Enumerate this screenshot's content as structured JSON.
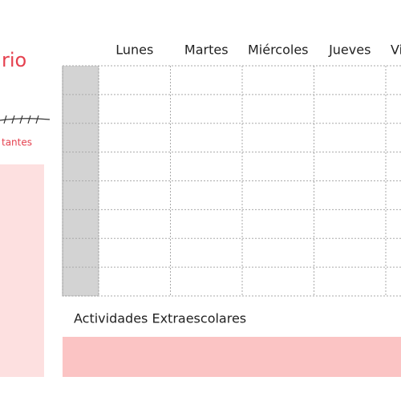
{
  "header": {
    "title": "rio"
  },
  "notes": {
    "title": "tantes"
  },
  "schedule": {
    "days": [
      "Lunes",
      "Martes",
      "Miércoles",
      "Jueves",
      "Vi"
    ]
  },
  "extracurricular": {
    "title": "Actividades Extraescolares"
  }
}
